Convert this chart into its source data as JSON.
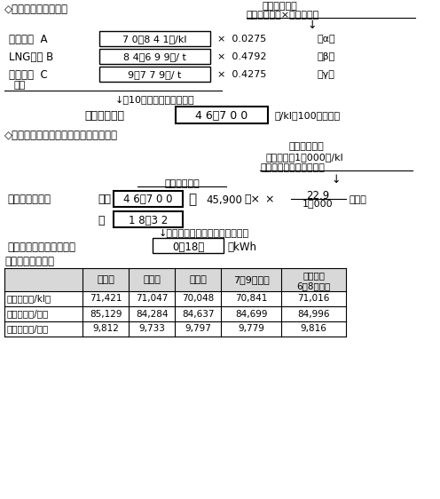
{
  "title1": "◇平均燃料価格の査定",
  "conversion_header": "＜換算係数＞",
  "conversion_subheader": "原油換算係数×熱量構成比",
  "item_A_label": "原油価格  A",
  "item_A_value": "7 0，8 4 1円/kl",
  "item_A_coef": "×  0.0275",
  "item_A_sym": "（α）",
  "item_B_label": "LNG価格 B",
  "item_B_value": "8 4，6 9 9円/ t",
  "item_B_coef": "×  0.4792",
  "item_B_sym": "（β）",
  "item_C_label": "石炭価格  C",
  "item_C_value": "9，7 7 9円/ t",
  "item_C_coef": "×  0.4275",
  "item_C_sym": "（γ）",
  "plus_label": "＋）",
  "round_note1": "↓（10円の位で四捨五入）",
  "avg_label": "平均燃料価格",
  "avg_value": "4 6，7 0 0",
  "avg_unit": "円/kl（100円単位）",
  "title2": "◇燃料費調整単価の査定〈低圧の場合〉",
  "base_header": "＜基準単価＞",
  "base_line1": "燃料価格が1，000円/kl",
  "base_line2": "変動した場合の料金変動",
  "avg_fuel_label": "平均燃料価格",
  "formula_label": "燃料費調整単価",
  "formula_eq1": "＝（",
  "formula_val1": "4 6，7 0 0",
  "formula_minus": "－",
  "formula_val2": "45,900",
  "formula_close": "）×",
  "formula_frac_num": "22.9",
  "formula_frac_den": "1，000",
  "formula_sen": "（銭）",
  "formula_eq2": "＝",
  "formula_result": "1 8．3 2",
  "round_note2": "↓（小数点以下第１位四捨五入）",
  "tax_label": "燃料費調整単価（税込）",
  "tax_value": "0円18銭",
  "tax_unit": "／kWh",
  "table_title": "〔参考〕燃料価格",
  "col_headers": [
    "",
    "７　月",
    "８　月",
    "９　月",
    "7～9月平均",
    "（参考）\n6～8月平均"
  ],
  "row1": [
    "原　油（円/kl）",
    "71,421",
    "71,047",
    "70,048",
    "70,841",
    "71,016"
  ],
  "row2": [
    "ＬＮＧ（円/ｔ）",
    "85,129",
    "84,284",
    "84,637",
    "84,699",
    "84,996"
  ],
  "row3": [
    "石　炭（円/ｔ）",
    "9,812",
    "9,733",
    "9,797",
    "9,779",
    "9,816"
  ],
  "bg": "#ffffff",
  "text_color": "#000000"
}
